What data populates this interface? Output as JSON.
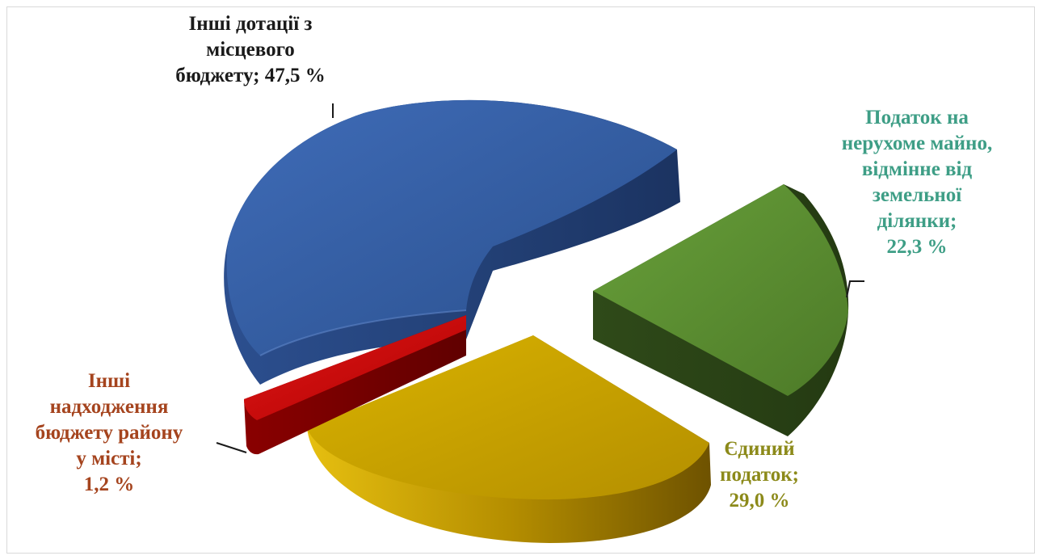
{
  "chart_data": {
    "type": "pie",
    "title": "",
    "slices": [
      {
        "label_lines": [
          "Інші дотації з",
          "місцевого",
          "бюджету; 47,5 %"
        ],
        "value": 47.5,
        "color": "#2E5597",
        "label_color": "#1a1a1a"
      },
      {
        "label_lines": [
          "Податок  на",
          "нерухоме майно,",
          "відмінне від",
          "земельної",
          "ділянки;",
          "22,3 %"
        ],
        "value": 22.3,
        "color": "#5A8A30",
        "label_color": "#3E9E86"
      },
      {
        "label_lines": [
          "Єдиний",
          "податок;",
          "29,0 %"
        ],
        "value": 29.0,
        "color": "#C9A300",
        "label_color": "#8C8A1A"
      },
      {
        "label_lines": [
          "Інші",
          "надходження",
          "бюджету району",
          "у місті;",
          "1,2 %"
        ],
        "value": 1.2,
        "color": "#C00000",
        "label_color": "#A5441E"
      }
    ]
  }
}
